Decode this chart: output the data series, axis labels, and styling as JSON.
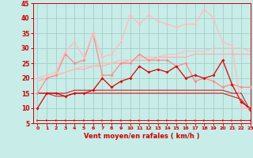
{
  "background_color": "#c8ece8",
  "xlabel": "Vent moyen/en rafales ( km/h )",
  "xlim": [
    -0.5,
    23
  ],
  "ylim": [
    5,
    45
  ],
  "xticks": [
    0,
    1,
    2,
    3,
    4,
    5,
    6,
    7,
    8,
    9,
    10,
    11,
    12,
    13,
    14,
    15,
    16,
    17,
    18,
    19,
    20,
    21,
    22,
    23
  ],
  "yticks": [
    5,
    10,
    15,
    20,
    25,
    30,
    35,
    40,
    45
  ],
  "x": [
    0,
    1,
    2,
    3,
    4,
    5,
    6,
    7,
    8,
    9,
    10,
    11,
    12,
    13,
    14,
    15,
    16,
    17,
    18,
    19,
    20,
    21,
    22,
    23
  ],
  "lines": [
    {
      "y": [
        10,
        15,
        15,
        14,
        15,
        15,
        16,
        20,
        17,
        19,
        20,
        24,
        22,
        23,
        22,
        24,
        20,
        21,
        20,
        21,
        26,
        18,
        12,
        10
      ],
      "color": "#dd0000",
      "lw": 0.9,
      "marker": "D",
      "ms": 2.0,
      "zorder": 6
    },
    {
      "y": [
        15,
        15,
        14,
        14,
        15,
        15,
        15,
        15,
        15,
        15,
        15,
        15,
        15,
        15,
        15,
        15,
        15,
        15,
        15,
        15,
        15,
        14,
        13,
        9
      ],
      "color": "#cc2222",
      "lw": 0.8,
      "marker": null,
      "ms": 0,
      "zorder": 3
    },
    {
      "y": [
        15,
        15,
        15,
        15,
        16,
        16,
        16,
        16,
        16,
        16,
        16,
        16,
        16,
        16,
        16,
        16,
        16,
        16,
        16,
        16,
        16,
        15,
        15,
        9
      ],
      "color": "#cc2222",
      "lw": 0.8,
      "marker": null,
      "ms": 0,
      "zorder": 3
    },
    {
      "y": [
        15,
        20,
        21,
        28,
        25,
        26,
        35,
        21,
        21,
        25,
        25,
        28,
        26,
        26,
        26,
        24,
        25,
        19,
        20,
        19,
        17,
        18,
        17,
        17
      ],
      "color": "#ff8888",
      "lw": 0.9,
      "marker": "D",
      "ms": 2.0,
      "zorder": 4
    },
    {
      "y": [
        19,
        20,
        21,
        22,
        23,
        23,
        24,
        24,
        25,
        25,
        26,
        26,
        26,
        27,
        27,
        27,
        27,
        28,
        28,
        28,
        28,
        28,
        28,
        28
      ],
      "color": "#ffaaaa",
      "lw": 0.8,
      "marker": null,
      "ms": 0,
      "zorder": 2
    },
    {
      "y": [
        19,
        20,
        21,
        22,
        23,
        24,
        24,
        25,
        25,
        26,
        26,
        27,
        27,
        27,
        28,
        28,
        29,
        29,
        29,
        30,
        30,
        30,
        30,
        29
      ],
      "color": "#ffbbbb",
      "lw": 0.8,
      "marker": null,
      "ms": 0,
      "zorder": 2
    },
    {
      "y": [
        20,
        21,
        22,
        29,
        32,
        27,
        35,
        27,
        28,
        32,
        41,
        38,
        41,
        39,
        38,
        37,
        38,
        38,
        43,
        40,
        32,
        31,
        10,
        10
      ],
      "color": "#ffbbbb",
      "lw": 0.9,
      "marker": "D",
      "ms": 2.0,
      "zorder": 4
    },
    {
      "y": [
        6,
        6,
        6,
        6,
        6,
        6,
        6,
        6,
        6,
        6,
        6,
        6,
        6,
        6,
        6,
        6,
        6,
        6,
        6,
        6,
        6,
        6,
        6,
        6
      ],
      "color": "#dd0000",
      "lw": 0.7,
      "marker": ">",
      "ms": 2.0,
      "zorder": 3
    }
  ]
}
